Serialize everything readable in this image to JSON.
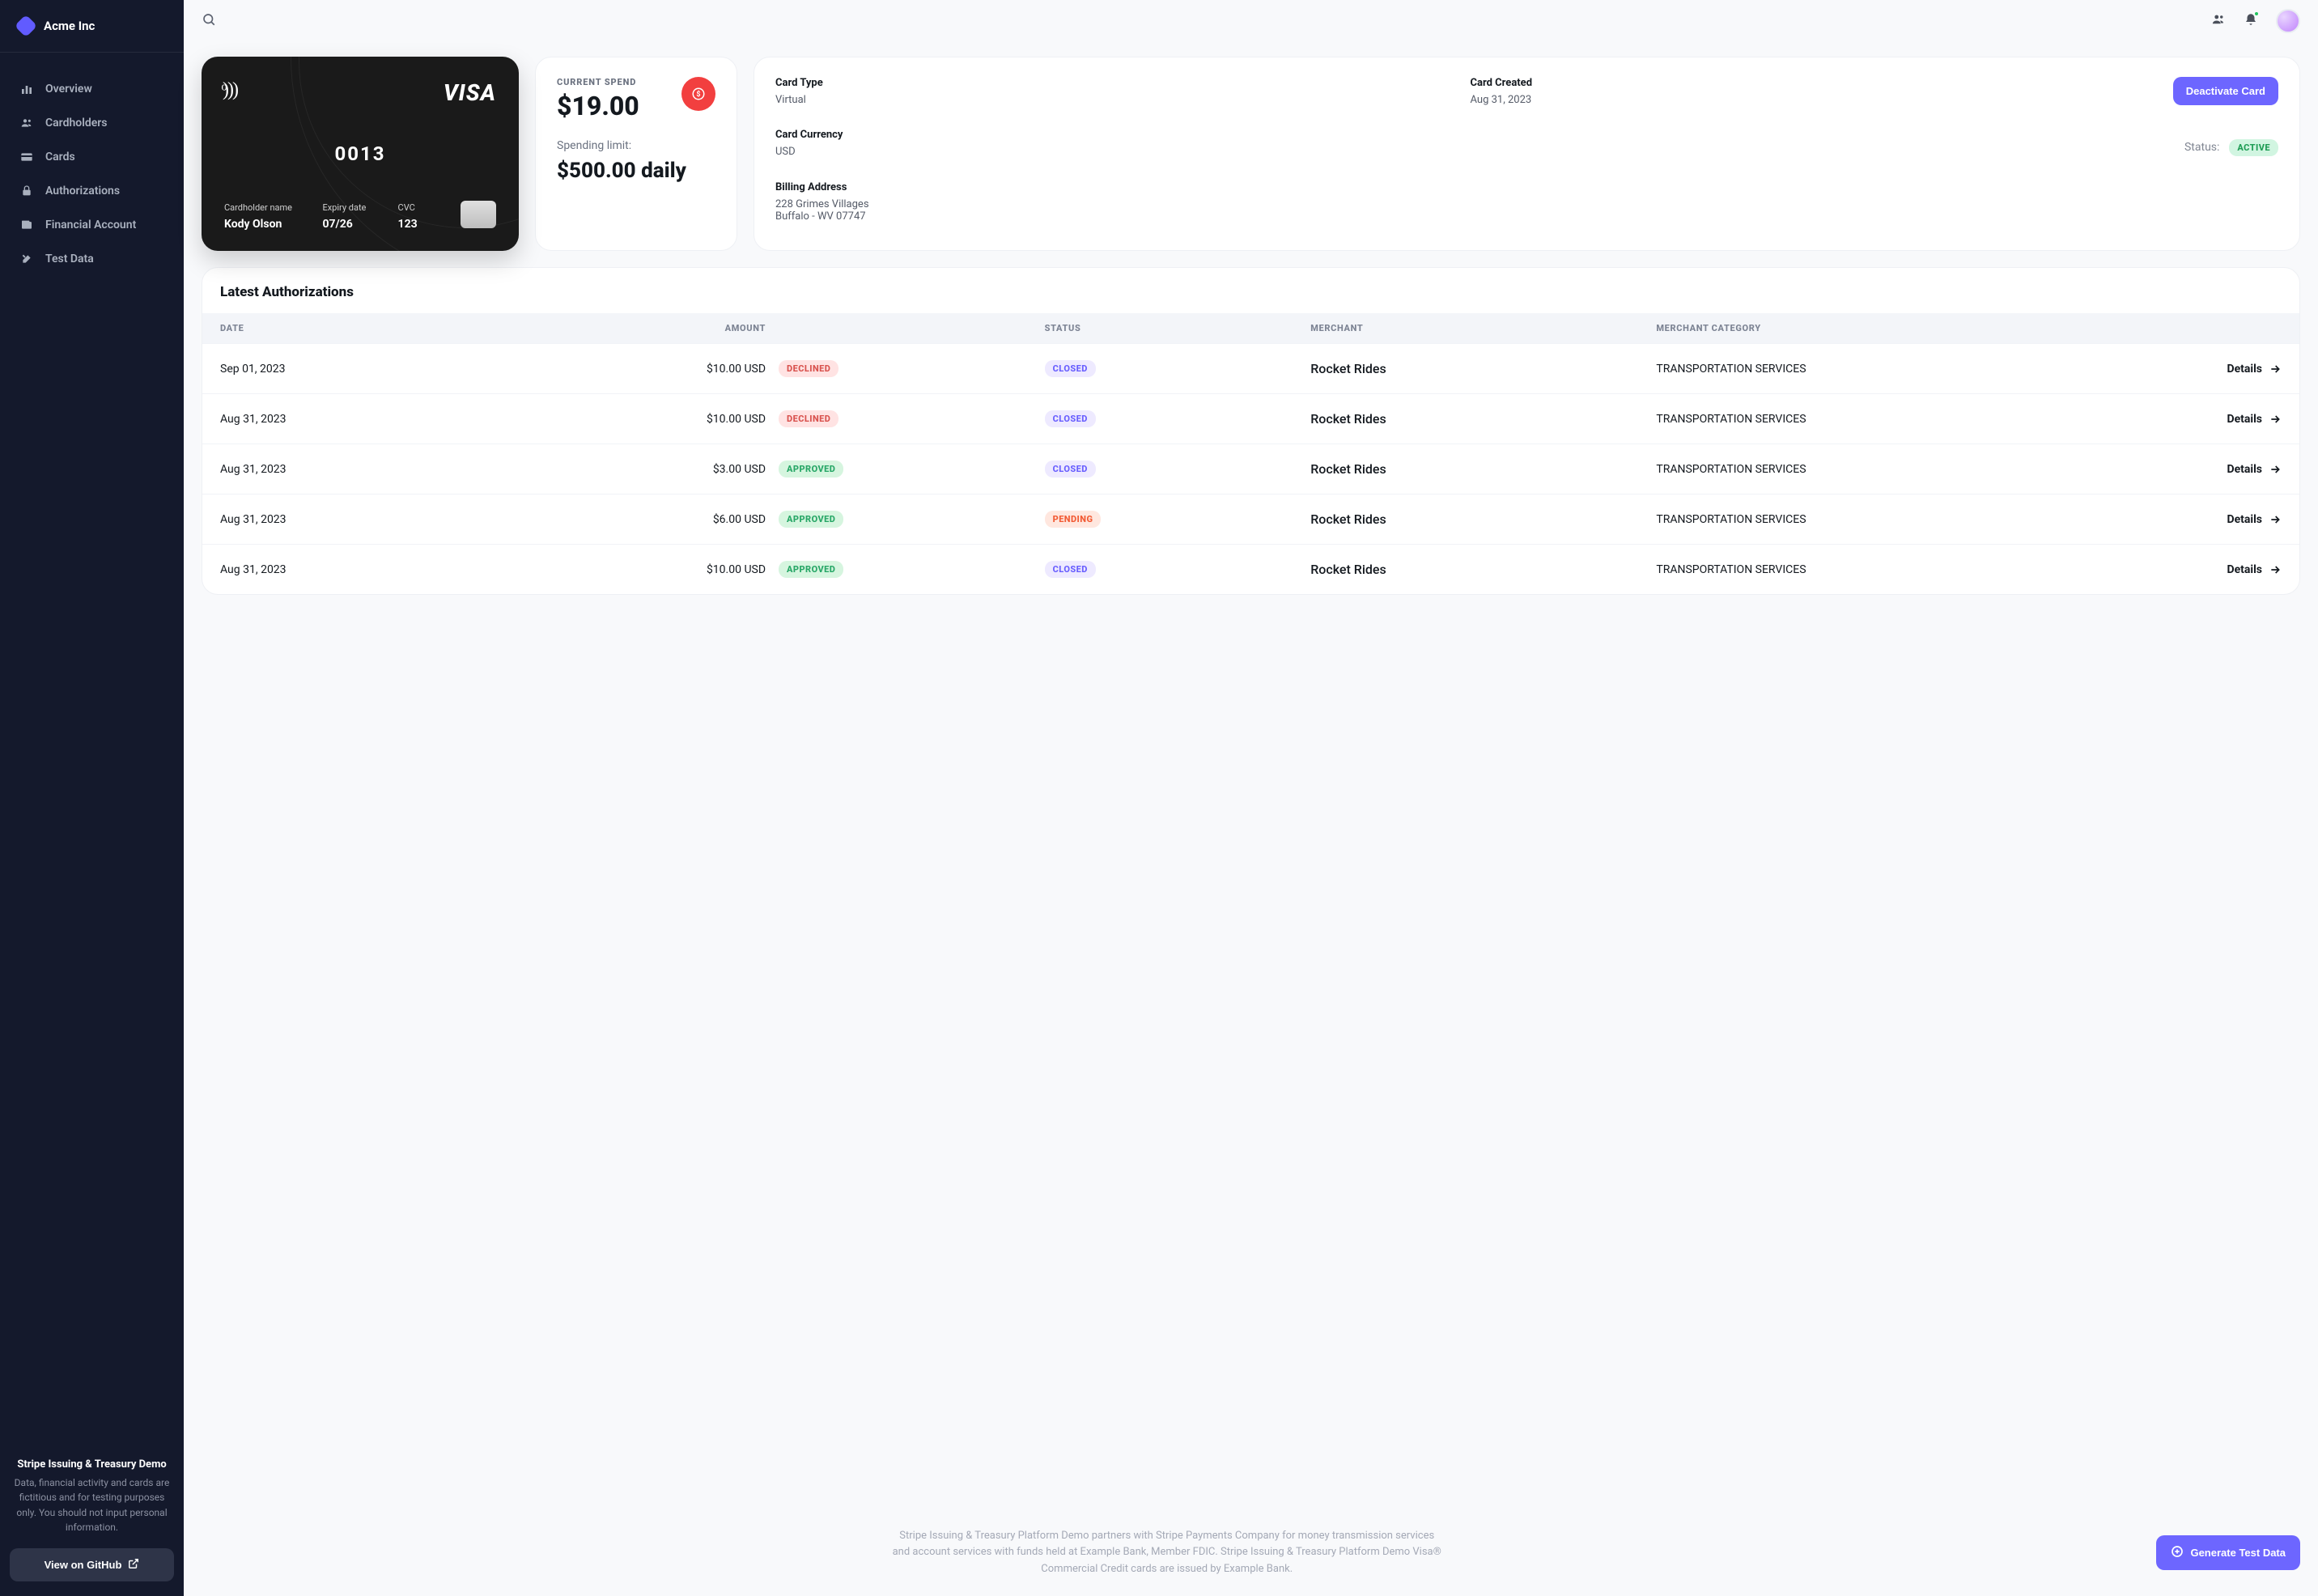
{
  "brand": {
    "name": "Acme Inc"
  },
  "sidebar": {
    "items": [
      {
        "label": "Overview",
        "icon": "bar-chart-icon"
      },
      {
        "label": "Cardholders",
        "icon": "users-icon"
      },
      {
        "label": "Cards",
        "icon": "credit-card-icon"
      },
      {
        "label": "Authorizations",
        "icon": "lock-icon"
      },
      {
        "label": "Financial Account",
        "icon": "wallet-icon"
      },
      {
        "label": "Test Data",
        "icon": "tools-icon"
      }
    ],
    "demo_title": "Stripe Issuing & Treasury Demo",
    "demo_desc": "Data, financial activity and cards are fictitious and for testing purposes only. You should not input personal information.",
    "github_label": "View on GitHub"
  },
  "card": {
    "brand": "VISA",
    "last4": "0013",
    "holder_label": "Cardholder name",
    "holder_name": "Kody Olson",
    "expiry_label": "Expiry date",
    "expiry": "07/26",
    "cvc_label": "CVC",
    "cvc": "123"
  },
  "spend": {
    "label": "CURRENT SPEND",
    "amount": "$19.00",
    "limit_label": "Spending limit:",
    "limit_amount": "$500.00 daily"
  },
  "info": {
    "type_label": "Card Type",
    "type_value": "Virtual",
    "created_label": "Card Created",
    "created_value": "Aug 31, 2023",
    "currency_label": "Card Currency",
    "currency_value": "USD",
    "billing_label": "Billing Address",
    "billing_line1": "228 Grimes Villages",
    "billing_line2": "Buffalo - WV 07747",
    "deactivate_label": "Deactivate Card",
    "status_label": "Status:",
    "status_value": "ACTIVE"
  },
  "table": {
    "title": "Latest Authorizations",
    "columns": [
      "DATE",
      "AMOUNT",
      "",
      "STATUS",
      "MERCHANT",
      "MERCHANT CATEGORY",
      ""
    ],
    "rows": [
      {
        "date": "Sep 01, 2023",
        "amount": "$10.00 USD",
        "result": "DECLINED",
        "status": "CLOSED",
        "merchant": "Rocket Rides",
        "category": "TRANSPORTATION SERVICES"
      },
      {
        "date": "Aug 31, 2023",
        "amount": "$10.00 USD",
        "result": "DECLINED",
        "status": "CLOSED",
        "merchant": "Rocket Rides",
        "category": "TRANSPORTATION SERVICES"
      },
      {
        "date": "Aug 31, 2023",
        "amount": "$3.00 USD",
        "result": "APPROVED",
        "status": "CLOSED",
        "merchant": "Rocket Rides",
        "category": "TRANSPORTATION SERVICES"
      },
      {
        "date": "Aug 31, 2023",
        "amount": "$6.00 USD",
        "result": "APPROVED",
        "status": "PENDING",
        "merchant": "Rocket Rides",
        "category": "TRANSPORTATION SERVICES"
      },
      {
        "date": "Aug 31, 2023",
        "amount": "$10.00 USD",
        "result": "APPROVED",
        "status": "CLOSED",
        "merchant": "Rocket Rides",
        "category": "TRANSPORTATION SERVICES"
      }
    ],
    "details_label": "Details"
  },
  "footer": {
    "text": "Stripe Issuing & Treasury Platform Demo partners with Stripe Payments Company for money transmission services and account services with funds held at Example Bank, Member FDIC. Stripe Issuing & Treasury Platform Demo Visa® Commercial Credit cards are issued by Example Bank.",
    "generate_label": "Generate Test Data"
  },
  "colors": {
    "sidebar_bg": "#14192c",
    "accent": "#6d66ff",
    "danger_icon_bg": "#f23f3f",
    "badge_active_bg": "#d1f5e1",
    "badge_active_fg": "#1f9d55",
    "badge_declined_bg": "#ffe3e3",
    "badge_declined_fg": "#d9534f",
    "badge_approved_bg": "#d6f5df",
    "badge_approved_fg": "#28a767",
    "badge_closed_bg": "#eeeaff",
    "badge_closed_fg": "#6a60ff",
    "badge_pending_bg": "#ffe7df",
    "badge_pending_fg": "#f25b35"
  }
}
